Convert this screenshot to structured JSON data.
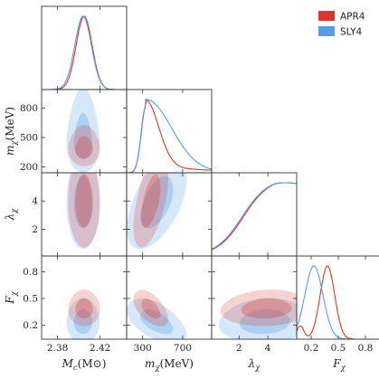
{
  "chart_data": {
    "type": "corner",
    "parameters": [
      {
        "key": "mc",
        "label_main": "M",
        "label_sub": "c",
        "label_unit": "(M⊙)",
        "range": [
          2.365,
          2.445
        ],
        "ticks": [
          2.38,
          2.42
        ],
        "tick_labels": [
          "2.38",
          "2.42"
        ]
      },
      {
        "key": "mchi",
        "label_main": "m",
        "label_sub": "χ",
        "label_unit": "(MeV)",
        "range": [
          140,
          990
        ],
        "ticks": [
          300,
          700
        ],
        "tick_labels": [
          "300",
          "700"
        ],
        "row_ticks": [
          200,
          500,
          800
        ],
        "row_tick_labels": [
          "200",
          "500",
          "800"
        ]
      },
      {
        "key": "lam",
        "label_main": "λ",
        "label_sub": "χ",
        "label_unit": "",
        "range": [
          0.1,
          6.0
        ],
        "ticks": [
          2,
          4
        ],
        "tick_labels": [
          "2",
          "4"
        ]
      },
      {
        "key": "fchi",
        "label_main": "F",
        "label_sub": "χ",
        "label_unit": "",
        "range": [
          0.04,
          0.98
        ],
        "ticks": [
          0.2,
          0.5,
          0.8
        ],
        "tick_labels": [
          "0.2",
          "0.5",
          "0.8"
        ]
      }
    ],
    "series": [
      {
        "name": "APR4",
        "color": "#d8362b",
        "marginals": {
          "mc": {
            "mean": 2.405,
            "sd": 0.0075
          },
          "mchi": {
            "mode": 330,
            "left_sd": 45,
            "right_sd": 130,
            "tail": 0.12
          },
          "lam": {
            "type": "rise",
            "x0": 2.3,
            "w": 0.9
          },
          "fchi": {
            "peaks": [
              {
                "mu": 0.38,
                "sd": 0.08,
                "w": 1.0
              },
              {
                "mu": 0.08,
                "sd": 0.04,
                "w": 0.18
              }
            ]
          }
        }
      },
      {
        "name": "SLY4",
        "color": "#5b9de5",
        "marginals": {
          "mc": {
            "mean": 2.404,
            "sd": 0.0078
          },
          "mchi": {
            "mode": 340,
            "left_sd": 50,
            "right_sd": 250,
            "tail": 0.05
          },
          "lam": {
            "type": "rise",
            "x0": 2.2,
            "w": 0.9
          },
          "fchi": {
            "peaks": [
              {
                "mu": 0.23,
                "sd": 0.1,
                "w": 1.0
              }
            ]
          }
        }
      }
    ],
    "legend": {
      "position": "top-right"
    }
  }
}
